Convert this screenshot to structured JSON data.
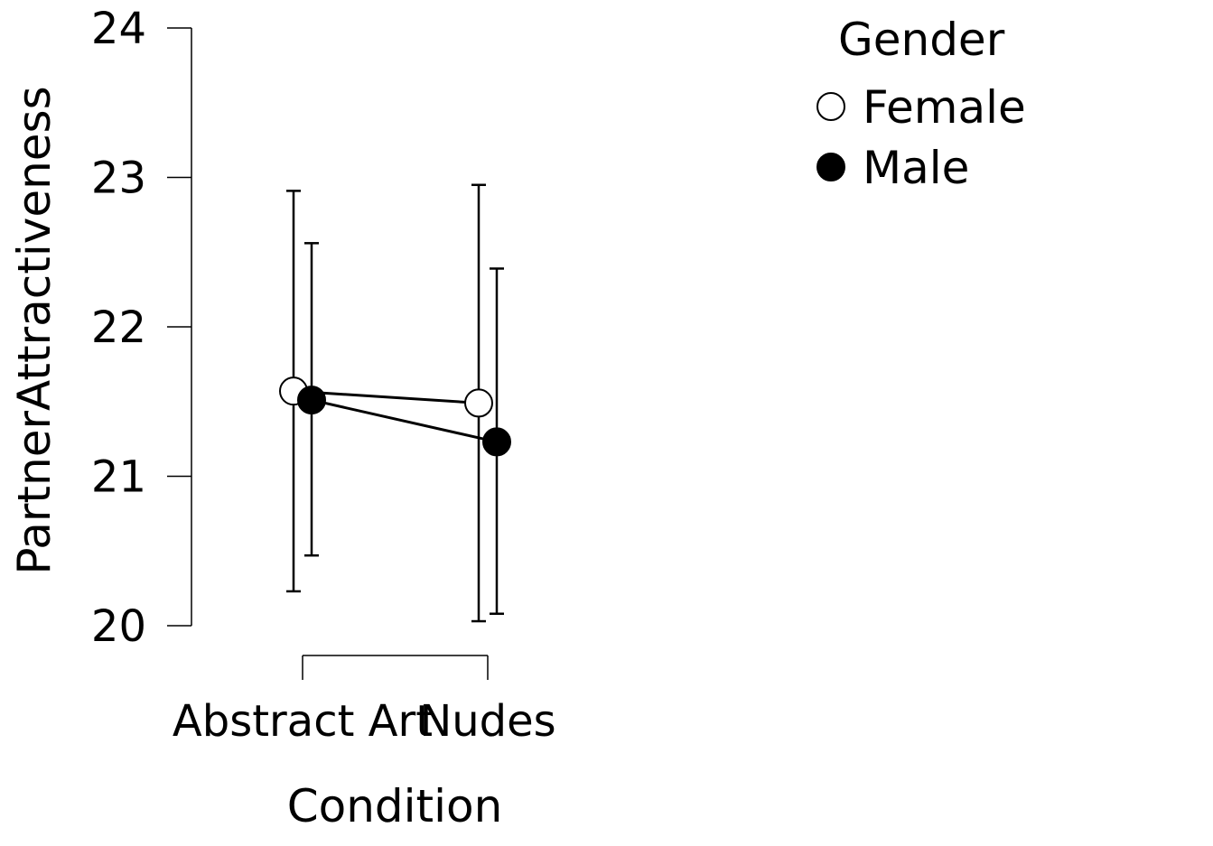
{
  "chart_data": {
    "type": "line",
    "xlabel": "Condition",
    "ylabel": "PartnerAttractiveness",
    "categories": [
      "Abstract Art",
      "Nudes"
    ],
    "ylim": [
      20,
      24
    ],
    "yticks": [
      20,
      21,
      22,
      23,
      24
    ],
    "grid": false,
    "legend": {
      "title": "Gender",
      "placement": "top-right"
    },
    "series": [
      {
        "name": "Female",
        "marker": "open-circle",
        "values": [
          21.57,
          21.49
        ],
        "ci_lower": [
          20.23,
          20.03
        ],
        "ci_upper": [
          22.91,
          22.95
        ]
      },
      {
        "name": "Male",
        "marker": "filled-circle",
        "values": [
          21.51,
          21.23
        ],
        "ci_lower": [
          20.47,
          20.08
        ],
        "ci_upper": [
          22.56,
          22.39
        ]
      }
    ],
    "colors": {
      "line": "#000000",
      "filled": "#000000",
      "open": "#ffffff"
    }
  }
}
